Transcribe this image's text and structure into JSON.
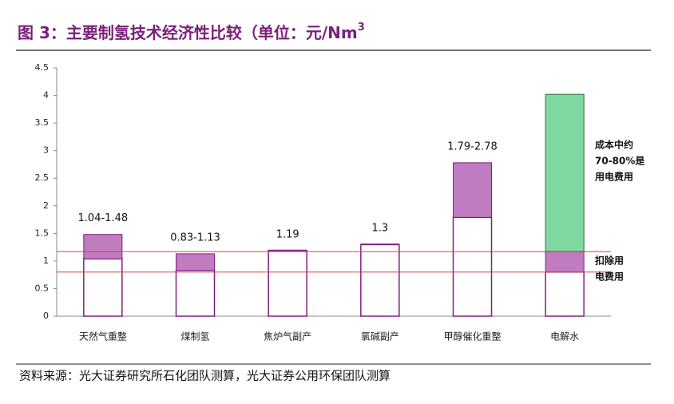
{
  "chart_data": {
    "type": "range_bar",
    "title": "图 3：主要制氢技术经济性比较（单位：元/Nm",
    "title_sup": "3",
    "categories": [
      "天然气重整",
      "煤制氢",
      "焦炉气副产",
      "氯碱副产",
      "甲醇催化重整",
      "电解水"
    ],
    "low": [
      1.04,
      0.83,
      1.19,
      1.3,
      1.79,
      0.8
    ],
    "high": [
      1.48,
      1.13,
      1.19,
      1.3,
      2.78,
      1.17
    ],
    "upper": [
      null,
      null,
      null,
      null,
      null,
      4.02
    ],
    "value_labels": [
      "1.04-1.48",
      "0.83-1.13",
      "1.19",
      "1.3",
      "1.79-2.78",
      null
    ],
    "range_color": "#c07cc0",
    "upper_color": "#7fd8a0",
    "hlines": [
      1.17,
      0.8
    ],
    "hline_color": "#d04040",
    "ylim": [
      0,
      4.5
    ],
    "yticks": [
      0,
      0.5,
      1,
      1.5,
      2,
      2.5,
      3,
      3.5,
      4,
      4.5
    ],
    "annotations": [
      {
        "lines": [
          "成本中约",
          "70-80%是",
          "用电费用"
        ],
        "y": 3.1
      },
      {
        "lines": [
          "扣除用",
          "电费用"
        ],
        "y": 1.0
      }
    ],
    "source": "资料来源：光大证券研究所石化团队测算，光大证券公用环保团队测算"
  }
}
